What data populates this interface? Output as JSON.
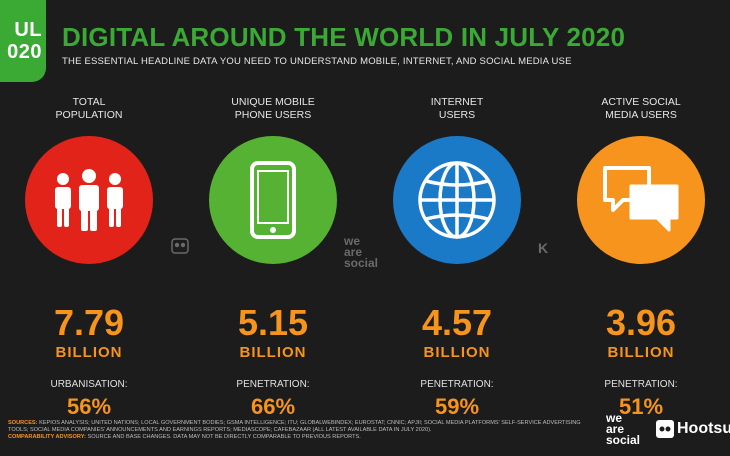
{
  "badge": {
    "line1": "UL",
    "line2": "020"
  },
  "header": {
    "title": "DIGITAL AROUND THE WORLD IN JULY 2020",
    "subtitle": "THE ESSENTIAL HEADLINE DATA YOU NEED TO UNDERSTAND MOBILE, INTERNET, AND SOCIAL MEDIA USE"
  },
  "columns": [
    {
      "label_line1": "TOTAL",
      "label_line2": "POPULATION",
      "value": "7.79",
      "unit": "BILLION",
      "stat_label": "URBANISATION:",
      "stat_value": "56%",
      "color": "#e2231a",
      "icon": "people-icon"
    },
    {
      "label_line1": "UNIQUE MOBILE",
      "label_line2": "PHONE USERS",
      "value": "5.15",
      "unit": "BILLION",
      "stat_label": "PENETRATION:",
      "stat_value": "66%",
      "color": "#56b233",
      "icon": "mobile-phone-icon"
    },
    {
      "label_line1": "INTERNET",
      "label_line2": "USERS",
      "value": "4.57",
      "unit": "BILLION",
      "stat_label": "PENETRATION:",
      "stat_value": "59%",
      "color": "#1a7ac7",
      "icon": "globe-icon"
    },
    {
      "label_line1": "ACTIVE SOCIAL",
      "label_line2": "MEDIA USERS",
      "value": "3.96",
      "unit": "BILLION",
      "stat_label": "PENETRATION:",
      "stat_value": "51%",
      "color": "#f7941d",
      "icon": "speech-bubbles-icon"
    }
  ],
  "watermarks": {
    "was_line1": "we",
    "was_line2": "are",
    "was_line3": "social",
    "kepios": "K"
  },
  "footer": {
    "sources_label": "SOURCES:",
    "sources_text": "KEPIOS ANALYSIS; UNITED NATIONS; LOCAL GOVERNMENT BODIES; GSMA INTELLIGENCE; ITU; GLOBALWEBINDEX; EUROSTAT; CNNIC; APJII; SOCIAL MEDIA PLATFORMS' SELF-SERVICE ADVERTISING TOOLS; SOCIAL MEDIA COMPANIES' ANNOUNCEMENTS AND EARNINGS REPORTS; MEDIASCOPE; CAFEBAZAAR (ALL LATEST AVAILABLE DATA IN JULY 2020).",
    "advisory_label": "COMPARABILITY ADVISORY:",
    "advisory_text": "SOURCE AND BASE CHANGES. DATA MAY NOT BE DIRECTLY COMPARABLE TO PREVIOUS REPORTS.",
    "brand_was_line1": "we",
    "brand_was_line2": "are",
    "brand_was_line3": "social",
    "brand_hootsuite": "Hootsu"
  }
}
